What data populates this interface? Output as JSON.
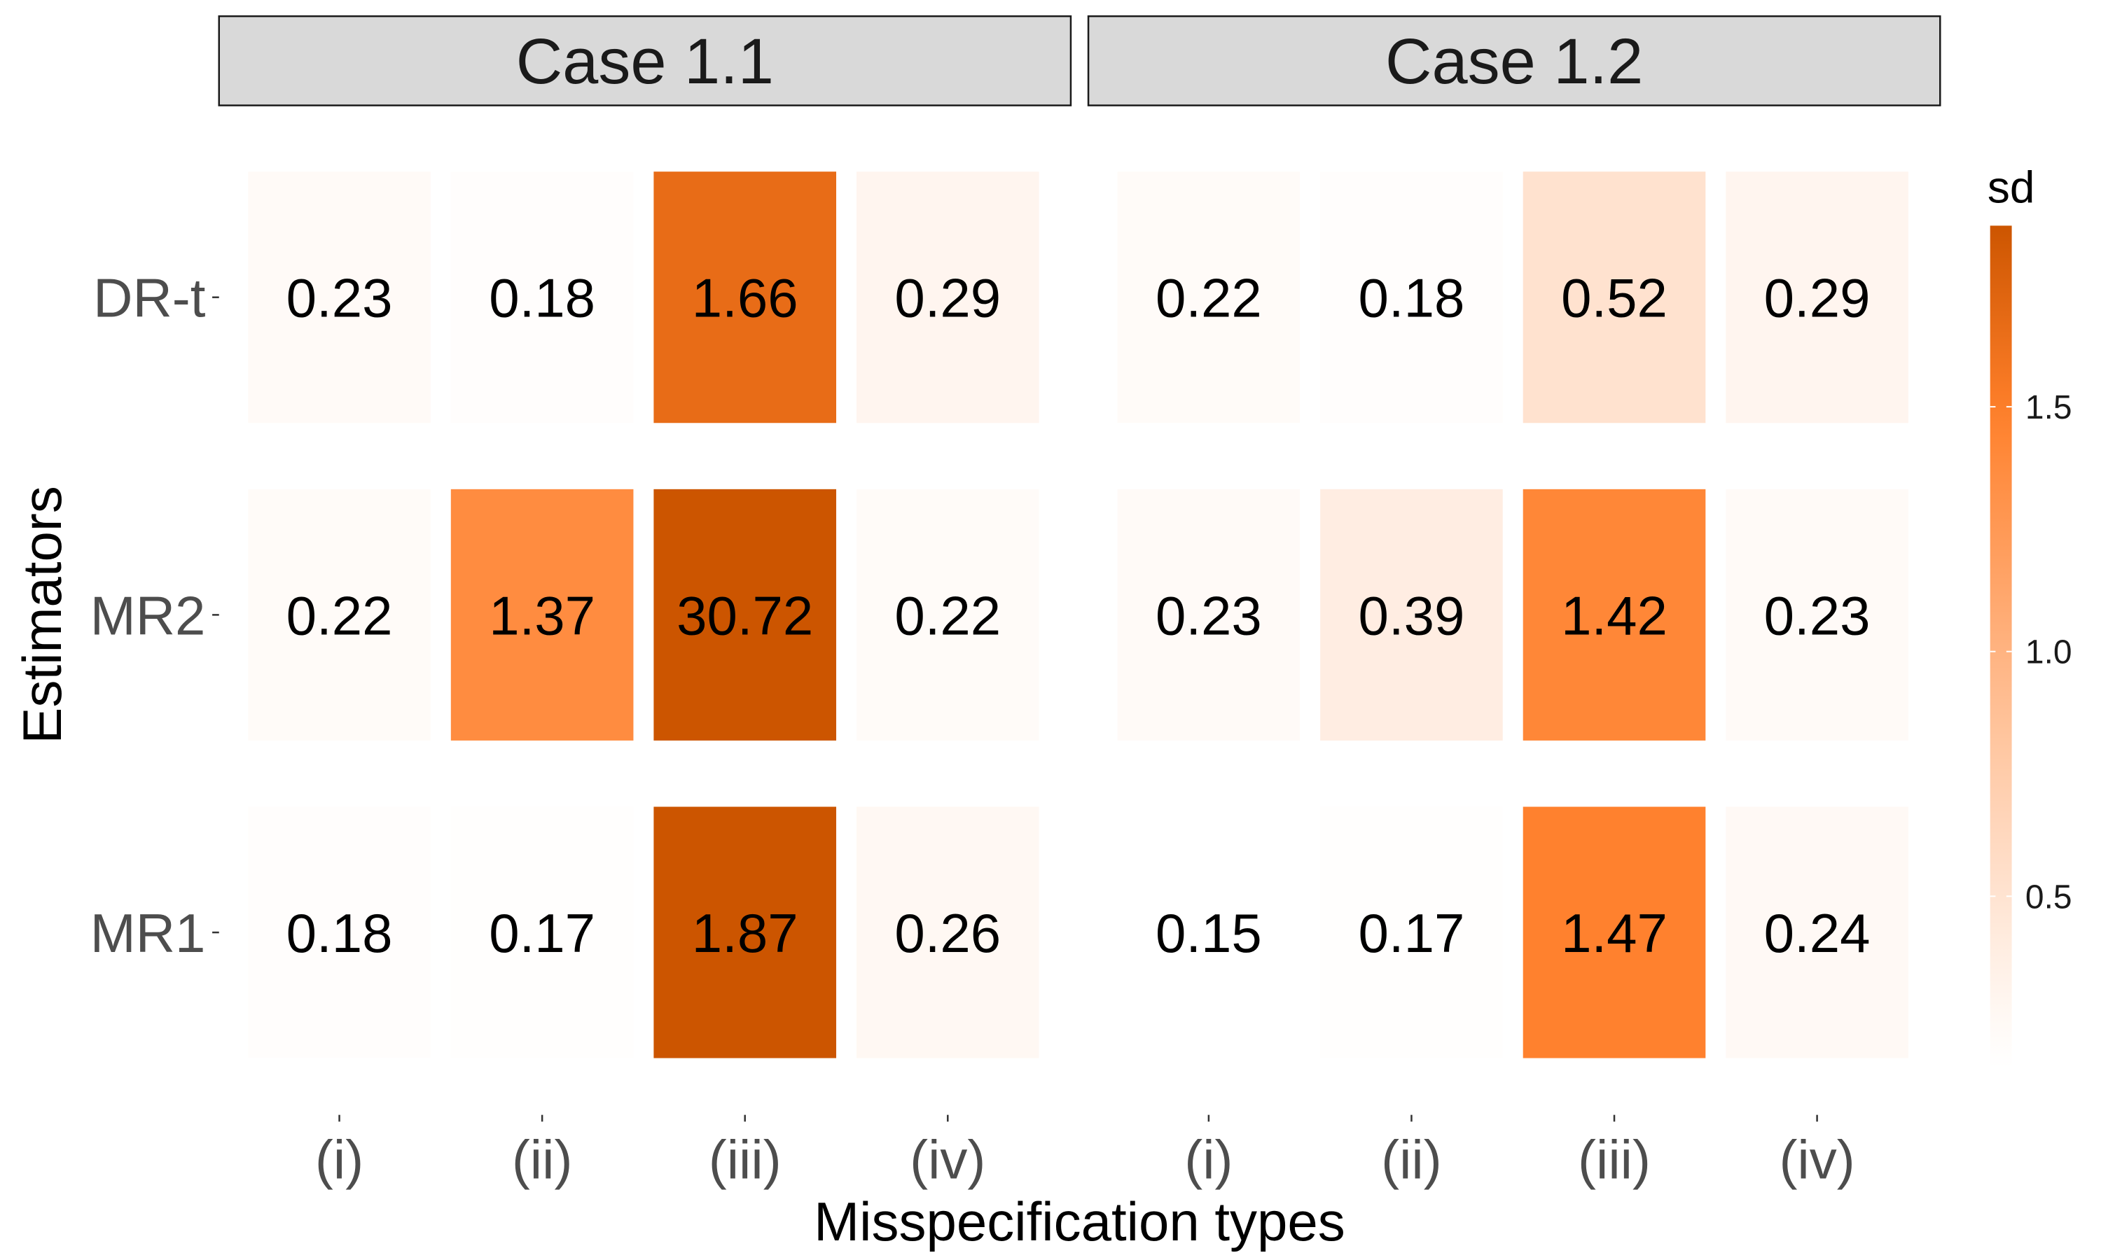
{
  "chart_data": {
    "type": "heatmap",
    "xlabel": "Misspecification types",
    "ylabel": "Estimators",
    "x_categories": [
      "(i)",
      "(ii)",
      "(iii)",
      "(iv)"
    ],
    "y_categories": [
      "DR-t",
      "MR2",
      "MR1"
    ],
    "legend": {
      "title": "sd",
      "placement": "right",
      "min": 0.15,
      "max": 1.87,
      "ticks": [
        "0.5",
        "1.0",
        "1.5"
      ],
      "tick_values": [
        0.5,
        1.0,
        1.5
      ],
      "color_low": "#ffffff",
      "color_mid": "#ff7f2a",
      "color_high": "#cc5500",
      "clip_value": 1.87
    },
    "panels": [
      {
        "title": "Case 1.1",
        "values": [
          [
            "0.23",
            "0.18",
            "1.66",
            "0.29"
          ],
          [
            "0.22",
            "1.37",
            "30.72",
            "0.22"
          ],
          [
            "0.18",
            "0.17",
            "1.87",
            "0.26"
          ]
        ]
      },
      {
        "title": "Case 1.2",
        "values": [
          [
            "0.22",
            "0.18",
            "0.52",
            "0.29"
          ],
          [
            "0.23",
            "0.39",
            "1.42",
            "0.23"
          ],
          [
            "0.15",
            "0.17",
            "1.47",
            "0.24"
          ]
        ]
      }
    ],
    "strip_color": "#d9d9d9",
    "grid": false
  }
}
